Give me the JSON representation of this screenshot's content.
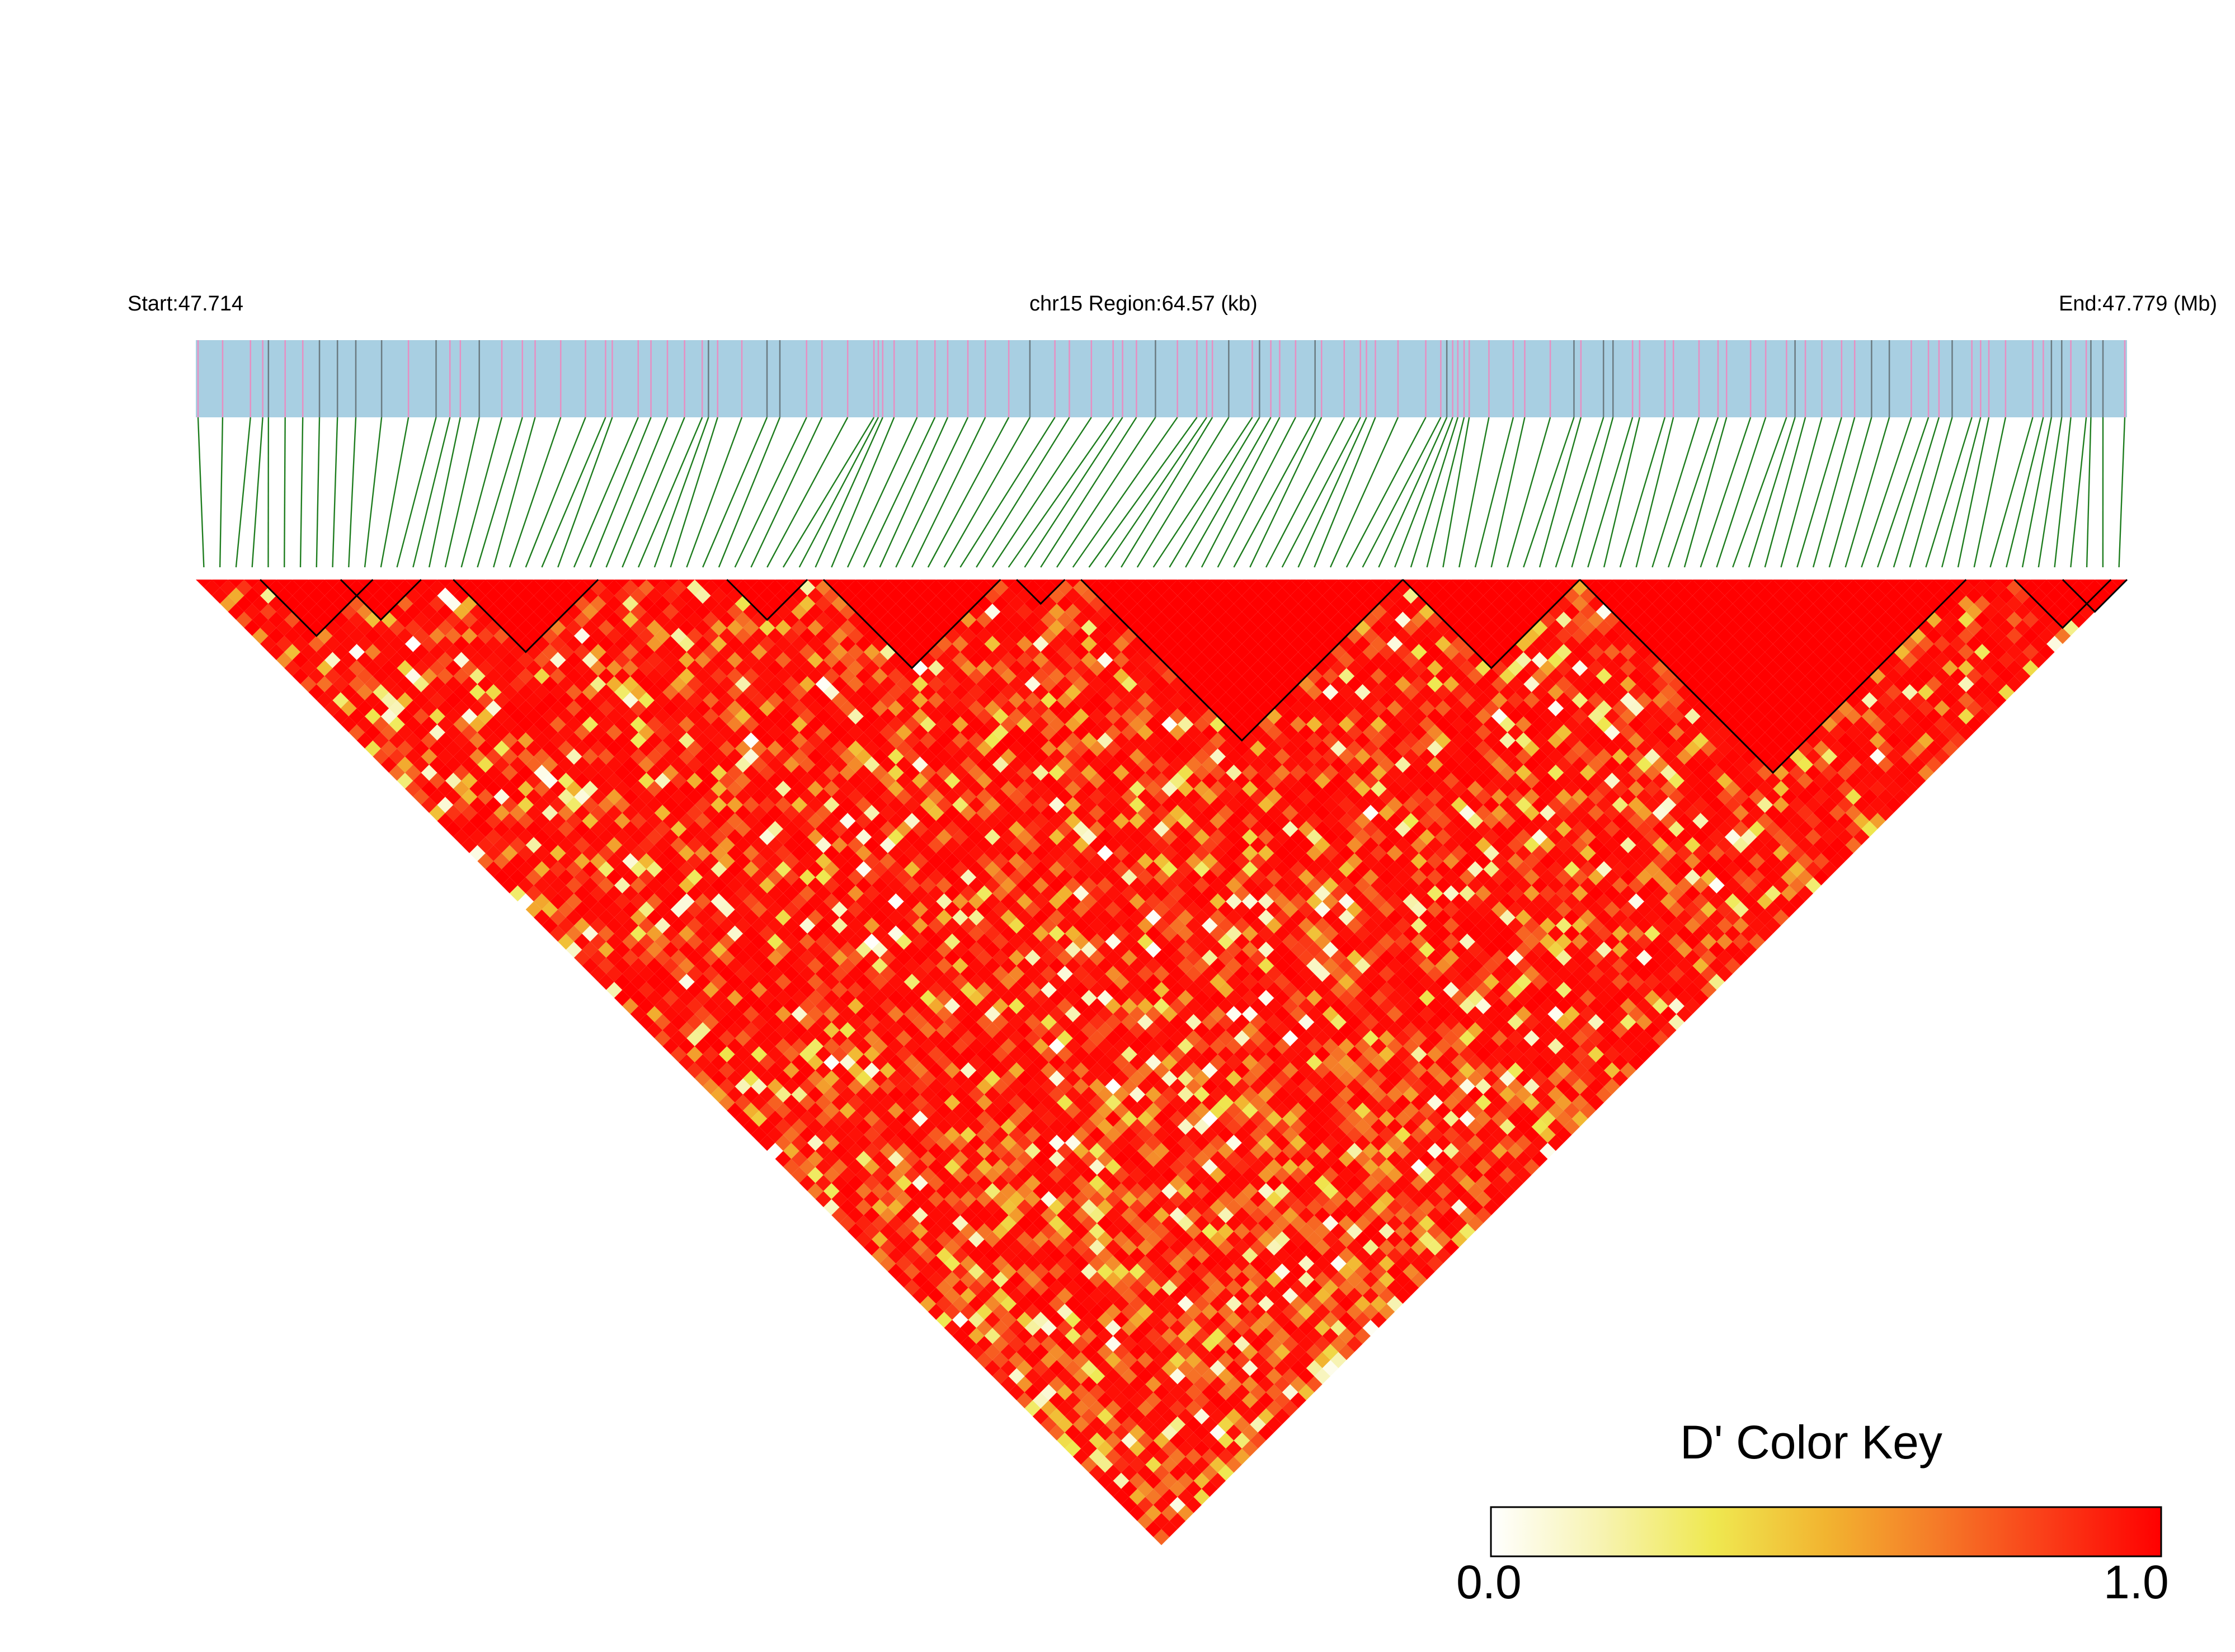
{
  "header": {
    "start_label": "Start:47.714",
    "region_label": "chr15 Region:64.57 (kb)",
    "end_label": "End:47.779 (Mb)"
  },
  "colors": {
    "track_fill": "#a8cfe2",
    "snp_tick_pink": "#e78fc2",
    "snp_tick_gray": "#6b7b82",
    "connector": "#1e7d1e",
    "block_outline": "#000000",
    "gradient": [
      "#ffffff",
      "#f7f3b0",
      "#efe850",
      "#f2b430",
      "#f57a28",
      "#fa3c18",
      "#ff0000"
    ]
  },
  "chart_data": {
    "type": "heatmap",
    "description_type": "linkage disequilibrium triangle (D')",
    "chromosome": "chr15",
    "region_start_mb": 47.714,
    "region_end_mb": 47.779,
    "region_length_kb": 64.57,
    "snp_count": 120,
    "color_scale": {
      "metric": "D'",
      "min": 0.0,
      "max": 1.0
    },
    "ld_blocks_snp_index": [
      [
        4,
        10
      ],
      [
        9,
        13
      ],
      [
        16,
        24
      ],
      [
        33,
        37
      ],
      [
        39,
        49
      ],
      [
        51,
        53
      ],
      [
        55,
        74
      ],
      [
        75,
        85
      ],
      [
        86,
        109
      ],
      [
        113,
        118
      ],
      [
        116,
        119
      ]
    ],
    "legend": {
      "title": "D' Color Key",
      "min_label": "0.0",
      "max_label": "1.0",
      "placement": "bottom-right"
    }
  }
}
